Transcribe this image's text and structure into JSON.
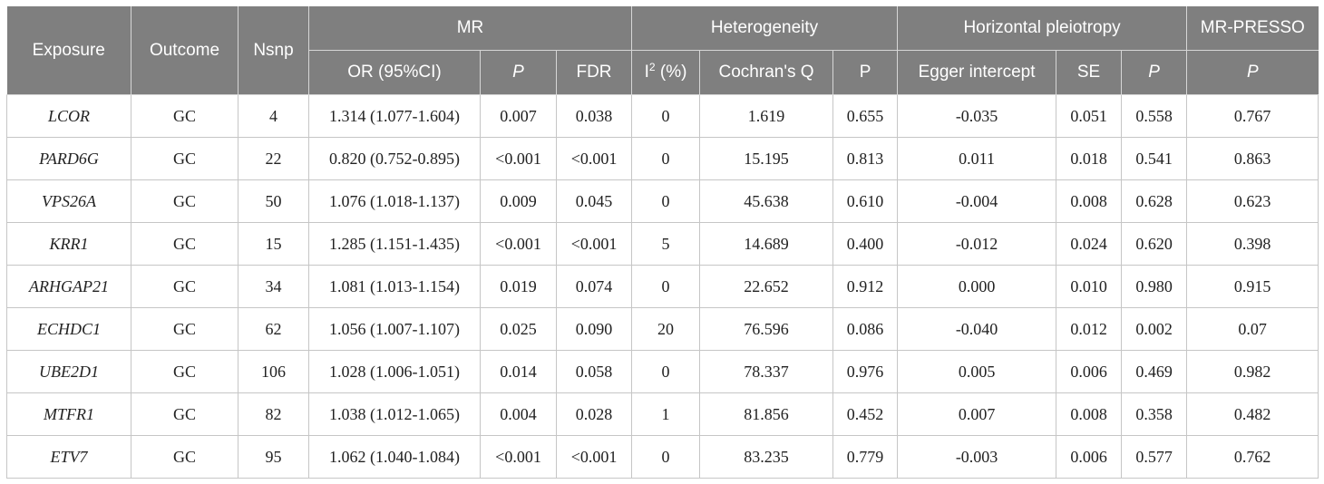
{
  "header": {
    "exposure": "Exposure",
    "outcome": "Outcome",
    "nsnp": "Nsnp",
    "mr": "MR",
    "heterogeneity": "Heterogeneity",
    "pleiotropy": "Horizontal pleiotropy",
    "presso": "MR-PRESSO",
    "or_ci": "OR (95%CI)",
    "p_mr": "P",
    "fdr": "FDR",
    "i2_prefix": "I",
    "i2_sup": "2",
    "i2_suffix": " (%)",
    "cochran_q": "Cochran's Q",
    "p_het": "P",
    "egger": "Egger intercept",
    "se": "SE",
    "p_egger": "P",
    "p_presso": "P"
  },
  "rows": [
    {
      "exposure": "LCOR",
      "outcome": "GC",
      "nsnp": "4",
      "or_ci": "1.314 (1.077-1.604)",
      "p": "0.007",
      "fdr": "0.038",
      "i2": "0",
      "q": "1.619",
      "p_het": "0.655",
      "egger": "-0.035",
      "se": "0.051",
      "p_egger": "0.558",
      "p_presso": "0.767"
    },
    {
      "exposure": "PARD6G",
      "outcome": "GC",
      "nsnp": "22",
      "or_ci": "0.820 (0.752-0.895)",
      "p": "<0.001",
      "fdr": "<0.001",
      "i2": "0",
      "q": "15.195",
      "p_het": "0.813",
      "egger": "0.011",
      "se": "0.018",
      "p_egger": "0.541",
      "p_presso": "0.863"
    },
    {
      "exposure": "VPS26A",
      "outcome": "GC",
      "nsnp": "50",
      "or_ci": "1.076 (1.018-1.137)",
      "p": "0.009",
      "fdr": "0.045",
      "i2": "0",
      "q": "45.638",
      "p_het": "0.610",
      "egger": "-0.004",
      "se": "0.008",
      "p_egger": "0.628",
      "p_presso": "0.623"
    },
    {
      "exposure": "KRR1",
      "outcome": "GC",
      "nsnp": "15",
      "or_ci": "1.285 (1.151-1.435)",
      "p": "<0.001",
      "fdr": "<0.001",
      "i2": "5",
      "q": "14.689",
      "p_het": "0.400",
      "egger": "-0.012",
      "se": "0.024",
      "p_egger": "0.620",
      "p_presso": "0.398"
    },
    {
      "exposure": "ARHGAP21",
      "outcome": "GC",
      "nsnp": "34",
      "or_ci": "1.081 (1.013-1.154)",
      "p": "0.019",
      "fdr": "0.074",
      "i2": "0",
      "q": "22.652",
      "p_het": "0.912",
      "egger": "0.000",
      "se": "0.010",
      "p_egger": "0.980",
      "p_presso": "0.915"
    },
    {
      "exposure": "ECHDC1",
      "outcome": "GC",
      "nsnp": "62",
      "or_ci": "1.056 (1.007-1.107)",
      "p": "0.025",
      "fdr": "0.090",
      "i2": "20",
      "q": "76.596",
      "p_het": "0.086",
      "egger": "-0.040",
      "se": "0.012",
      "p_egger": "0.002",
      "p_presso": "0.07"
    },
    {
      "exposure": "UBE2D1",
      "outcome": "GC",
      "nsnp": "106",
      "or_ci": "1.028 (1.006-1.051)",
      "p": "0.014",
      "fdr": "0.058",
      "i2": "0",
      "q": "78.337",
      "p_het": "0.976",
      "egger": "0.005",
      "se": "0.006",
      "p_egger": "0.469",
      "p_presso": "0.982"
    },
    {
      "exposure": "MTFR1",
      "outcome": "GC",
      "nsnp": "82",
      "or_ci": "1.038 (1.012-1.065)",
      "p": "0.004",
      "fdr": "0.028",
      "i2": "1",
      "q": "81.856",
      "p_het": "0.452",
      "egger": "0.007",
      "se": "0.008",
      "p_egger": "0.358",
      "p_presso": "0.482"
    },
    {
      "exposure": "ETV7",
      "outcome": "GC",
      "nsnp": "95",
      "or_ci": "1.062 (1.040-1.084)",
      "p": "<0.001",
      "fdr": "<0.001",
      "i2": "0",
      "q": "83.235",
      "p_het": "0.779",
      "egger": "-0.003",
      "se": "0.006",
      "p_egger": "0.577",
      "p_presso": "0.762"
    }
  ]
}
